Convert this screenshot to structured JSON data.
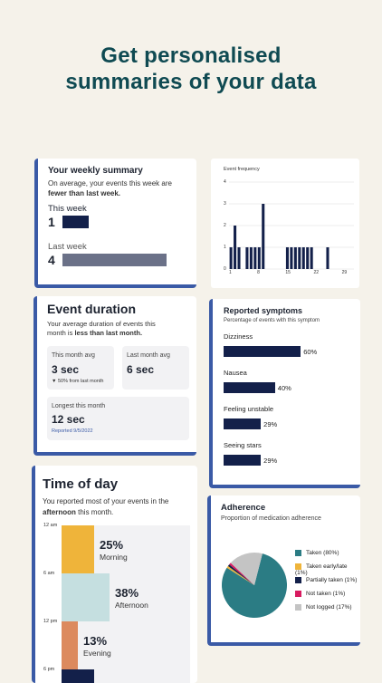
{
  "headline": {
    "line1": "Get personalised",
    "line2": "summaries of your data"
  },
  "weekly": {
    "title": "Your weekly summary",
    "desc_pre": "On average, your events this week are",
    "desc_bold": "fewer than last week.",
    "this_week_label": "This week",
    "this_week_value": "1",
    "last_week_label": "Last week",
    "last_week_value": "4",
    "colors": {
      "this": "#13204a",
      "last": "#6b7188"
    }
  },
  "frequency": {
    "title": "Event frequency",
    "y_ticks": [
      "4",
      "3",
      "2",
      "1",
      "0"
    ],
    "x_ticks": [
      "1",
      "8",
      "15",
      "22",
      "29"
    ]
  },
  "chart_data": {
    "type": "bar",
    "title": "Event frequency",
    "xlabel": "",
    "ylabel": "",
    "ylim": [
      0,
      4
    ],
    "x": [
      1,
      2,
      3,
      5,
      6,
      7,
      8,
      9,
      15,
      16,
      17,
      18,
      19,
      20,
      21,
      25
    ],
    "values": [
      1,
      2,
      1,
      1,
      1,
      1,
      1,
      3,
      1,
      1,
      1,
      1,
      1,
      1,
      1,
      1
    ]
  },
  "duration": {
    "title": "Event duration",
    "desc_pre": "Your average duration of events this",
    "desc_mid": "month is ",
    "desc_bold": "less than last month.",
    "this_month_label": "This month avg",
    "this_month_value": "3 sec",
    "change_text": "▼ 50% from last month",
    "last_month_label": "Last month avg",
    "last_month_value": "6 sec",
    "longest_label": "Longest this month",
    "longest_value": "12 sec",
    "reported": "Reported 9/5/2022"
  },
  "symptoms": {
    "title": "Reported symptoms",
    "subtitle": "Percentage of events with this symptom",
    "items": [
      {
        "label": "Dizziness",
        "pct": "60%",
        "value": 60
      },
      {
        "label": "Nausea",
        "pct": "40%",
        "value": 40
      },
      {
        "label": "Feeling unstable",
        "pct": "29%",
        "value": 29
      },
      {
        "label": "Seeing stars",
        "pct": "29%",
        "value": 29
      }
    ]
  },
  "timeofday": {
    "title": "Time of day",
    "desc_pre": "You reported most of your events in the",
    "desc_bold": "afternoon",
    "desc_post": " this month.",
    "times": [
      "12 am",
      "6 am",
      "12 pm",
      "6 pm"
    ],
    "segments": [
      {
        "pct": "25%",
        "label": "Morning",
        "color": "#efb43a"
      },
      {
        "pct": "38%",
        "label": "Afternoon",
        "color": "#c5dfe0"
      },
      {
        "pct": "13%",
        "label": "Evening",
        "color": "#dc8a5e"
      }
    ]
  },
  "adherence": {
    "title": "Adherence",
    "subtitle": "Proportion of medication adherence",
    "legend": [
      {
        "label": "Taken (80%)",
        "value": 80,
        "color": "#2b7c84"
      },
      {
        "label": "Taken early/late (1%)",
        "value": 1,
        "color": "#efb43a"
      },
      {
        "label": "Partially taken (1%)",
        "value": 1,
        "color": "#13204a"
      },
      {
        "label": "Not taken (1%)",
        "value": 1,
        "color": "#d81b60"
      },
      {
        "label": "Not logged (17%)",
        "value": 17,
        "color": "#c4c4c4"
      }
    ]
  }
}
